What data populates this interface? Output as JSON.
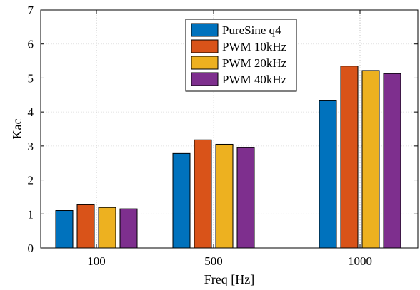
{
  "chart_data": {
    "type": "bar",
    "title": "",
    "xlabel": "Freq [Hz]",
    "ylabel": "Kac",
    "ylim": [
      0,
      7
    ],
    "yticks": [
      "0",
      "1",
      "2",
      "3",
      "4",
      "5",
      "6",
      "7"
    ],
    "categories": [
      "100",
      "500",
      "1000"
    ],
    "grid": true,
    "legend_position": "top-center",
    "series": [
      {
        "name": "PureSine q4",
        "color": "#0072BD",
        "values": [
          1.1,
          2.78,
          4.33
        ]
      },
      {
        "name": "PWM 10kHz",
        "color": "#D95319",
        "values": [
          1.27,
          3.18,
          5.35
        ]
      },
      {
        "name": "PWM 20kHz",
        "color": "#EDB120",
        "values": [
          1.19,
          3.05,
          5.22
        ]
      },
      {
        "name": "PWM 40kHz",
        "color": "#7E2F8E",
        "values": [
          1.15,
          2.95,
          5.13
        ]
      }
    ]
  }
}
